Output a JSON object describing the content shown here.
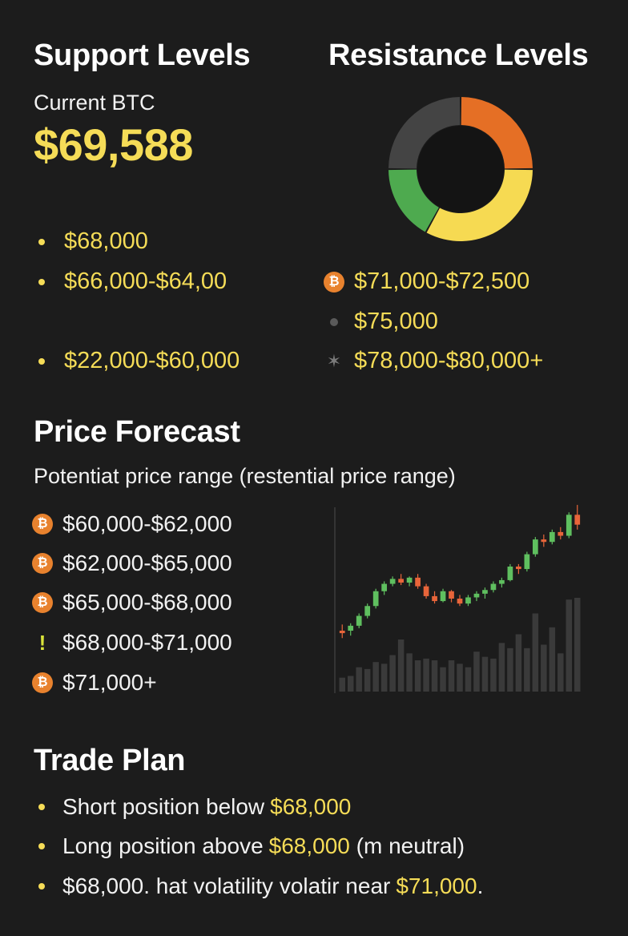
{
  "support": {
    "title": "Support Levels",
    "current_label": "Current BTC",
    "current_price": "$69,588",
    "levels": [
      "$68,000",
      "$66,000-$64,00",
      "$22,000-$60,000"
    ]
  },
  "resistance": {
    "title": "Resistance Levels",
    "levels": [
      "$71,000-$72,500",
      "$75,000",
      "$78,000-$80,000+"
    ],
    "icons": [
      "bitcoin-icon",
      "gray-dot-icon",
      "star-icon"
    ]
  },
  "donut": {
    "colors": {
      "orange": "#e56f25",
      "yellow": "#f6da52",
      "green": "#4eaa4f",
      "gray": "#444444"
    }
  },
  "forecast": {
    "title": "Price Forecast",
    "subtitle": "Potentiat price range (restential price range)",
    "ranges": [
      "$60,000-$62,000",
      "$62,000-$65,000",
      "$65,000-$68,000",
      "$68,000-$71,000",
      "$71,000+"
    ],
    "icons": [
      "bitcoin-icon",
      "bitcoin-icon",
      "bitcoin-icon",
      "exclamation-icon",
      "bitcoin-icon"
    ]
  },
  "trade_plan": {
    "title": "Trade Plan",
    "items": [
      {
        "text": "Short position below ",
        "hl": "$68,000",
        "tail": ""
      },
      {
        "text": "Long position above ",
        "hl": "$68,000",
        "tail": " (m neutral)"
      },
      {
        "text": "$68,000. hat volatility volatir near ",
        "hl": "$71,000",
        "tail": "."
      }
    ]
  },
  "chart_data": [
    {
      "type": "pie",
      "variant": "donut",
      "slices": [
        {
          "color": "#e56f25",
          "value": 25
        },
        {
          "color": "#f6da52",
          "value": 33
        },
        {
          "color": "#4eaa4f",
          "value": 17
        },
        {
          "color": "#444444",
          "value": 25
        }
      ]
    },
    {
      "type": "candlestick",
      "colors": {
        "up": "#5fbf5f",
        "down": "#e8653a",
        "volume": "#3a3a3a"
      },
      "candles": [
        {
          "o": 26,
          "h": 31,
          "l": 20,
          "c": 24
        },
        {
          "o": 26,
          "h": 32,
          "l": 22,
          "c": 30
        },
        {
          "o": 30,
          "h": 40,
          "l": 28,
          "c": 38
        },
        {
          "o": 38,
          "h": 48,
          "l": 36,
          "c": 46
        },
        {
          "o": 46,
          "h": 60,
          "l": 44,
          "c": 58
        },
        {
          "o": 58,
          "h": 66,
          "l": 55,
          "c": 64
        },
        {
          "o": 64,
          "h": 70,
          "l": 62,
          "c": 68
        },
        {
          "o": 68,
          "h": 72,
          "l": 63,
          "c": 65
        },
        {
          "o": 65,
          "h": 70,
          "l": 62,
          "c": 69
        },
        {
          "o": 69,
          "h": 72,
          "l": 60,
          "c": 62
        },
        {
          "o": 62,
          "h": 64,
          "l": 52,
          "c": 54
        },
        {
          "o": 54,
          "h": 58,
          "l": 48,
          "c": 50
        },
        {
          "o": 50,
          "h": 60,
          "l": 49,
          "c": 58
        },
        {
          "o": 58,
          "h": 59,
          "l": 49,
          "c": 52
        },
        {
          "o": 52,
          "h": 55,
          "l": 46,
          "c": 48
        },
        {
          "o": 48,
          "h": 55,
          "l": 46,
          "c": 53
        },
        {
          "o": 53,
          "h": 58,
          "l": 50,
          "c": 56
        },
        {
          "o": 56,
          "h": 61,
          "l": 52,
          "c": 59
        },
        {
          "o": 59,
          "h": 66,
          "l": 57,
          "c": 64
        },
        {
          "o": 64,
          "h": 69,
          "l": 61,
          "c": 67
        },
        {
          "o": 67,
          "h": 80,
          "l": 66,
          "c": 78
        },
        {
          "o": 78,
          "h": 80,
          "l": 72,
          "c": 76
        },
        {
          "o": 76,
          "h": 90,
          "l": 74,
          "c": 88
        },
        {
          "o": 88,
          "h": 102,
          "l": 86,
          "c": 100
        },
        {
          "o": 100,
          "h": 104,
          "l": 94,
          "c": 98
        },
        {
          "o": 98,
          "h": 108,
          "l": 96,
          "c": 106
        },
        {
          "o": 106,
          "h": 110,
          "l": 100,
          "c": 103
        },
        {
          "o": 103,
          "h": 122,
          "l": 101,
          "c": 120
        },
        {
          "o": 120,
          "h": 128,
          "l": 108,
          "c": 112
        }
      ],
      "volume": [
        8,
        9,
        14,
        13,
        17,
        16,
        21,
        30,
        22,
        18,
        19,
        18,
        14,
        18,
        16,
        14,
        23,
        20,
        19,
        28,
        25,
        33,
        25,
        45,
        27,
        37,
        22,
        53,
        54
      ]
    }
  ]
}
